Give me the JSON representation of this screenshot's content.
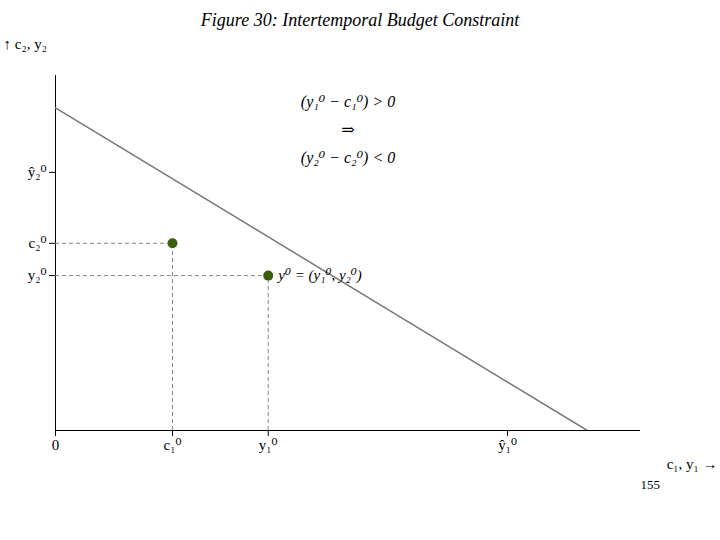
{
  "chart_data": {
    "type": "line",
    "title": "Figure 30: Intertemporal Budget Constraint",
    "xlabel": "c₁, y₁",
    "ylabel": "c₂, y₂",
    "xlim": [
      0,
      11
    ],
    "ylim": [
      0,
      11
    ],
    "xticks": [
      0,
      {
        "value": 2.2,
        "label": "c₁⁰"
      },
      {
        "value": 4.0,
        "label": "y₁⁰"
      },
      {
        "value": 8.5,
        "label": "ŷ₁⁰"
      }
    ],
    "yticks": [
      {
        "value": 5.8,
        "label": "c₂⁰"
      },
      {
        "value": 4.8,
        "label": "y₂⁰"
      },
      {
        "value": 8.0,
        "label": "ŷ₂⁰"
      }
    ],
    "grid": false,
    "series": [
      {
        "type": "line",
        "color": "#777777",
        "x": [
          0,
          10
        ],
        "values": [
          10,
          0
        ]
      },
      {
        "type": "scatter",
        "color": "#3A5F0B",
        "marker": "o",
        "x": [
          2.2,
          4.0
        ],
        "values": [
          5.8,
          4.8
        ]
      }
    ],
    "annotations": [
      "y⁰ = (y₁⁰, y₂⁰)",
      "(y₁⁰ − c₁⁰) > 0",
      "⇒",
      "(y₂⁰ − c₂⁰) < 0",
      "155"
    ]
  }
}
